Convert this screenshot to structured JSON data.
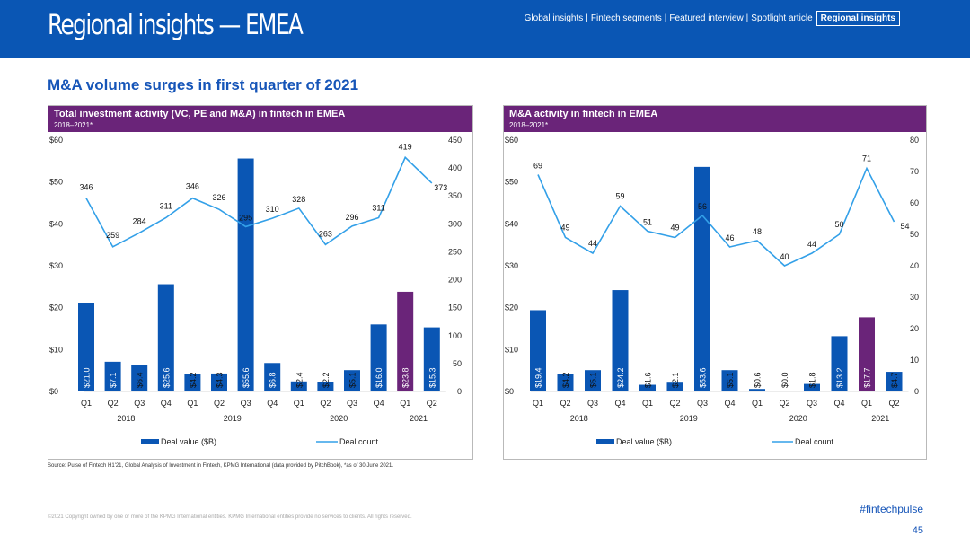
{
  "header": {
    "title": "Regional insights — EMEA",
    "nav": [
      "Global insights",
      "Fintech segments",
      "Featured interview",
      "Spotlight article"
    ],
    "nav_active": "Regional insights",
    "nav_separator": "|"
  },
  "page_title": "M&A volume surges in first quarter of 2021",
  "colors": {
    "bar": "#0a56b4",
    "bar_highlight": "#6a2479",
    "line": "#33a0e8",
    "header": "#6a2479",
    "topbar": "#0a56b4"
  },
  "chart_data": [
    {
      "type": "bar+line",
      "title": "Total investment activity (VC, PE and M&A) in fintech in EMEA",
      "subtitle": "2018–2021*",
      "categories": [
        "Q1",
        "Q2",
        "Q3",
        "Q4",
        "Q1",
        "Q2",
        "Q3",
        "Q4",
        "Q1",
        "Q2",
        "Q3",
        "Q4",
        "Q1",
        "Q2"
      ],
      "years": [
        {
          "label": "2018",
          "span": 4
        },
        {
          "label": "2019",
          "span": 4
        },
        {
          "label": "2020",
          "span": 4
        },
        {
          "label": "2021",
          "span": 2
        }
      ],
      "series": [
        {
          "name": "Deal value ($B)",
          "kind": "bar",
          "axis": "left",
          "values": [
            21.0,
            7.1,
            6.4,
            25.6,
            4.2,
            4.3,
            55.6,
            6.8,
            2.4,
            2.2,
            5.1,
            16.0,
            23.8,
            15.3
          ],
          "labels": [
            "$21.0",
            "$7.1",
            "$6.4",
            "$25.6",
            "$4.2",
            "$4.3",
            "$55.6",
            "$6.8",
            "$2.4",
            "$2.2",
            "$5.1",
            "$16.0",
            "$23.8",
            "$15.3"
          ]
        },
        {
          "name": "Deal count",
          "kind": "line",
          "axis": "right",
          "values": [
            346,
            259,
            284,
            311,
            346,
            326,
            295,
            310,
            328,
            263,
            296,
            311,
            419,
            373
          ],
          "labels": [
            "346",
            "259",
            "284",
            "311",
            "346",
            "326",
            "295",
            "310",
            "328",
            "263",
            "296",
            "311",
            "419",
            "373"
          ]
        }
      ],
      "y_left": {
        "min": 0,
        "max": 60,
        "ticks": [
          0,
          10,
          20,
          30,
          40,
          50,
          60
        ],
        "tick_labels": [
          "$0",
          "$10",
          "$20",
          "$30",
          "$40",
          "$50",
          "$60"
        ]
      },
      "y_right": {
        "min": 0,
        "max": 450,
        "ticks": [
          0,
          50,
          100,
          150,
          200,
          250,
          300,
          350,
          400,
          450
        ],
        "tick_labels": [
          "0",
          "50",
          "100",
          "150",
          "200",
          "250",
          "300",
          "350",
          "400",
          "450"
        ]
      },
      "legend": [
        "Deal value ($B)",
        "Deal count"
      ],
      "grid": false
    },
    {
      "type": "bar+line",
      "title": "M&A activity in fintech in EMEA",
      "subtitle": "2018–2021*",
      "categories": [
        "Q1",
        "Q2",
        "Q3",
        "Q4",
        "Q1",
        "Q2",
        "Q3",
        "Q4",
        "Q1",
        "Q2",
        "Q3",
        "Q4",
        "Q1",
        "Q2"
      ],
      "years": [
        {
          "label": "2018",
          "span": 4
        },
        {
          "label": "2019",
          "span": 4
        },
        {
          "label": "2020",
          "span": 4
        },
        {
          "label": "2021",
          "span": 2
        }
      ],
      "series": [
        {
          "name": "Deal value ($B)",
          "kind": "bar",
          "axis": "left",
          "values": [
            19.4,
            4.2,
            5.1,
            24.2,
            1.6,
            2.1,
            53.6,
            5.1,
            0.6,
            0.0,
            1.8,
            13.2,
            17.7,
            4.7
          ],
          "labels": [
            "$19.4",
            "$4.2",
            "$5.1",
            "$24.2",
            "$1.6",
            "$2.1",
            "$53.6",
            "$5.1",
            "$0.6",
            "$0.0",
            "$1.8",
            "$13.2",
            "$17.7",
            "$4.7"
          ]
        },
        {
          "name": "Deal count",
          "kind": "line",
          "axis": "right",
          "values": [
            69,
            49,
            44,
            59,
            51,
            49,
            56,
            46,
            48,
            40,
            44,
            50,
            71,
            54
          ],
          "labels": [
            "69",
            "49",
            "44",
            "59",
            "51",
            "49",
            "56",
            "46",
            "48",
            "40",
            "44",
            "50",
            "71",
            "54"
          ]
        }
      ],
      "y_left": {
        "min": 0,
        "max": 60,
        "ticks": [
          0,
          10,
          20,
          30,
          40,
          50,
          60
        ],
        "tick_labels": [
          "$0",
          "$10",
          "$20",
          "$30",
          "$40",
          "$50",
          "$60"
        ]
      },
      "y_right": {
        "min": 0,
        "max": 80,
        "ticks": [
          0,
          10,
          20,
          30,
          40,
          50,
          60,
          70,
          80
        ],
        "tick_labels": [
          "0",
          "10",
          "20",
          "30",
          "40",
          "50",
          "60",
          "70",
          "80"
        ]
      },
      "legend": [
        "Deal value ($B)",
        "Deal count"
      ],
      "grid": false
    }
  ],
  "footer": {
    "source": "Source: Pulse of Fintech H1'21, Global Analysis of Investment in Fintech, KPMG International (data provided by PitchBook), *as of 30 June 2021.",
    "copyright": "©2021 Copyright owned by one or more of the KPMG International entities. KPMG International entities provide no services to clients. All rights reserved.",
    "hashtag": "#fintechpulse",
    "page_number": "45"
  }
}
